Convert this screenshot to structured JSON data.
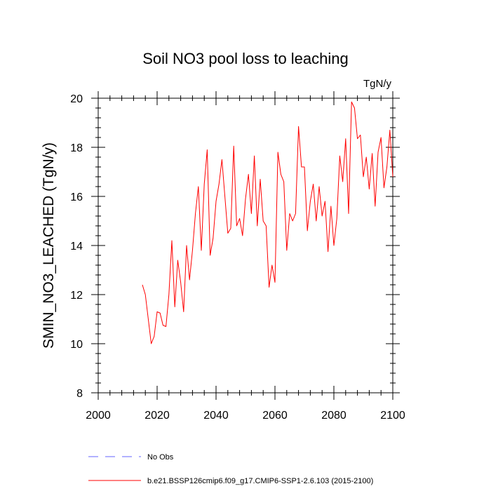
{
  "chart_data": {
    "type": "line",
    "title": "Soil NO3 pool loss to leaching",
    "units": "TgN/y",
    "ylabel": "SMIN_NO3_LEACHED  (TgN/y)",
    "xlabel": "",
    "xlim": [
      2000,
      2100
    ],
    "ylim": [
      8,
      20
    ],
    "xticks": [
      2000,
      2020,
      2040,
      2060,
      2080,
      2100
    ],
    "yticks": [
      8,
      10,
      12,
      14,
      16,
      18,
      20
    ],
    "x_minor_step": 4,
    "y_minor_step": 0.4,
    "grid": false,
    "legend_position": "bottom",
    "series": [
      {
        "name": "No Obs",
        "color": "#6666ff",
        "style": "dashed",
        "x": [],
        "values": []
      },
      {
        "name": "b.e21.BSSP126cmip6.f09_g17.CMIP6-SSP1-2.6.103 (2015-2100)",
        "color": "#ff0000",
        "style": "solid",
        "x": [
          2015,
          2016,
          2017,
          2018,
          2019,
          2020,
          2021,
          2022,
          2023,
          2024,
          2025,
          2026,
          2027,
          2028,
          2029,
          2030,
          2031,
          2032,
          2033,
          2034,
          2035,
          2036,
          2037,
          2038,
          2039,
          2040,
          2041,
          2042,
          2043,
          2044,
          2045,
          2046,
          2047,
          2048,
          2049,
          2050,
          2051,
          2052,
          2053,
          2054,
          2055,
          2056,
          2057,
          2058,
          2059,
          2060,
          2061,
          2062,
          2063,
          2064,
          2065,
          2066,
          2067,
          2068,
          2069,
          2070,
          2071,
          2072,
          2073,
          2074,
          2075,
          2076,
          2077,
          2078,
          2079,
          2080,
          2081,
          2082,
          2083,
          2084,
          2085,
          2086,
          2087,
          2088,
          2089,
          2090,
          2091,
          2092,
          2093,
          2094,
          2095,
          2096,
          2097,
          2098,
          2099,
          2100
        ],
        "values": [
          12.4,
          12.0,
          11.0,
          10.0,
          10.3,
          11.3,
          11.25,
          10.75,
          10.7,
          12.0,
          14.2,
          11.5,
          13.4,
          12.5,
          11.3,
          14.0,
          12.6,
          13.8,
          15.3,
          16.4,
          13.8,
          16.5,
          17.9,
          13.6,
          14.3,
          15.8,
          16.5,
          17.5,
          16.0,
          14.5,
          14.7,
          18.05,
          14.8,
          15.1,
          14.4,
          15.9,
          16.9,
          15.3,
          17.65,
          14.8,
          16.7,
          15.0,
          14.8,
          12.3,
          13.2,
          12.5,
          17.8,
          16.9,
          16.6,
          13.8,
          15.3,
          15.0,
          15.3,
          18.85,
          17.2,
          17.2,
          14.6,
          15.8,
          16.5,
          15.0,
          16.4,
          15.2,
          15.8,
          13.75,
          15.6,
          14.0,
          15.1,
          17.65,
          16.6,
          18.35,
          15.3,
          19.85,
          19.6,
          18.35,
          18.5,
          16.8,
          17.6,
          16.3,
          17.75,
          15.6,
          17.8,
          18.4,
          16.35,
          17.2,
          18.7,
          16.8
        ]
      }
    ]
  }
}
